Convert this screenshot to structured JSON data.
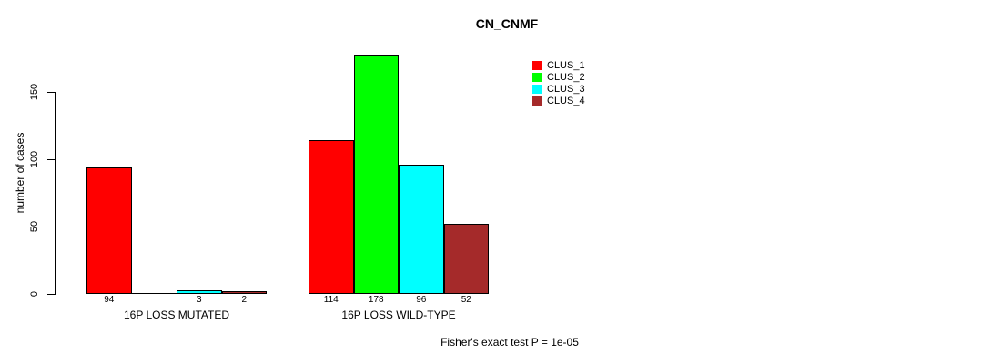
{
  "title": "CN_CNMF",
  "chart_data": {
    "type": "bar",
    "title": "CN_CNMF",
    "xlabel": "",
    "ylabel": "number of cases",
    "yticks": [
      0,
      50,
      100,
      150
    ],
    "ylim": [
      0,
      178
    ],
    "grid": false,
    "legend_position": "top-right",
    "categories": [
      "16P LOSS MUTATED",
      "16P LOSS WILD-TYPE"
    ],
    "series": [
      {
        "name": "CLUS_1",
        "color": "#FF0000",
        "values": [
          94,
          114
        ]
      },
      {
        "name": "CLUS_2",
        "color": "#00FF00",
        "values": [
          0,
          178
        ]
      },
      {
        "name": "CLUS_3",
        "color": "#00FFFF",
        "values": [
          3,
          96
        ]
      },
      {
        "name": "CLUS_4",
        "color": "#A52A2A",
        "values": [
          2,
          52
        ]
      }
    ],
    "groups": [
      {
        "label": "16P LOSS MUTATED",
        "values": [
          94,
          0,
          3,
          2
        ],
        "value_labels": [
          "94",
          "",
          "3",
          "2"
        ]
      },
      {
        "label": "16P LOSS WILD-TYPE",
        "values": [
          114,
          178,
          96,
          52
        ],
        "value_labels": [
          "114",
          "178",
          "96",
          "52"
        ]
      }
    ],
    "legend": [
      {
        "label": "CLUS_1",
        "color": "#FF0000"
      },
      {
        "label": "CLUS_2",
        "color": "#00FF00"
      },
      {
        "label": "CLUS_3",
        "color": "#00FFFF"
      },
      {
        "label": "CLUS_4",
        "color": "#A52A2A"
      }
    ],
    "annotation": "Fisher's exact test P = 1e-05"
  }
}
